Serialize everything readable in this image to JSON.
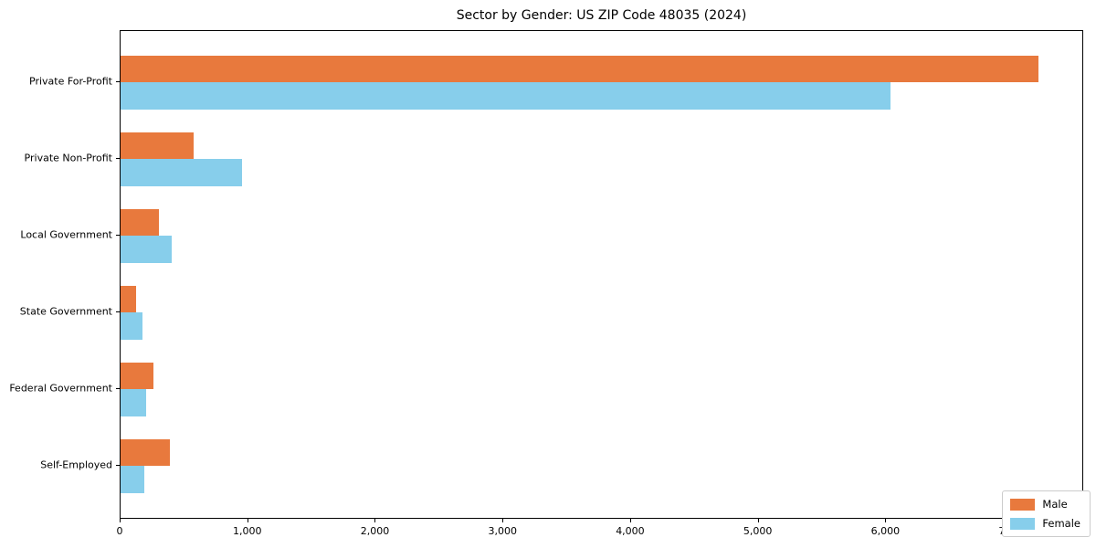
{
  "title": "Sector by Gender: US ZIP Code 48035 (2024)",
  "colors": {
    "male": "#E8793D",
    "female": "#87CEEB",
    "axis": "#000000",
    "legend_border": "#CCCCCC",
    "background": "#FFFFFF"
  },
  "legend": {
    "position": "lower right",
    "entries": [
      {
        "label": "Male",
        "color": "#E8793D"
      },
      {
        "label": "Female",
        "color": "#87CEEB"
      }
    ]
  },
  "chart_data": {
    "type": "bar",
    "orientation": "horizontal",
    "title": "Sector by Gender: US ZIP Code 48035 (2024)",
    "categories": [
      "Private For-Profit",
      "Private Non-Profit",
      "Local Government",
      "State Government",
      "Federal Government",
      "Self-Employed"
    ],
    "series": [
      {
        "name": "Male",
        "color": "#E8793D",
        "values": [
          7190,
          570,
          300,
          125,
          255,
          385
        ]
      },
      {
        "name": "Female",
        "color": "#87CEEB",
        "values": [
          6030,
          950,
          400,
          170,
          200,
          185
        ]
      }
    ],
    "xlabel": "",
    "ylabel": "",
    "xlim": [
      0,
      7550
    ],
    "xticks": [
      0,
      1000,
      2000,
      3000,
      4000,
      5000,
      6000,
      7000
    ],
    "xtick_labels": [
      "0",
      "1,000",
      "2,000",
      "3,000",
      "4,000",
      "5,000",
      "6,000",
      "7,000"
    ],
    "grid": false,
    "legend_position": "lower right"
  }
}
